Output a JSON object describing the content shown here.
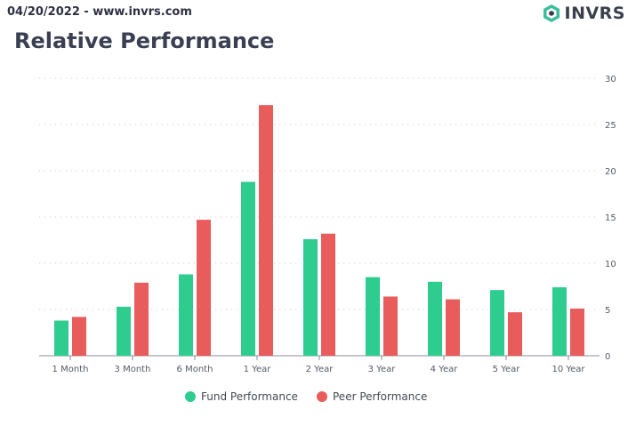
{
  "header": {
    "date_site": "04/20/2022 - www.invrs.com",
    "logo_text": "INVRS",
    "title": "Relative Performance"
  },
  "colors": {
    "fund": "#2ecc8f",
    "peer": "#e85c5c",
    "logo_accent": "#3bbf9b"
  },
  "icons": [
    "logo-hexagon-icon"
  ],
  "chart_data": {
    "type": "bar",
    "categories": [
      "1 Month",
      "3 Month",
      "6 Month",
      "1 Year",
      "2 Year",
      "3 Year",
      "4 Year",
      "5 Year",
      "10 Year"
    ],
    "series": [
      {
        "name": "Fund Performance",
        "values": [
          3.8,
          5.3,
          8.8,
          18.8,
          12.6,
          8.5,
          8.0,
          7.1,
          7.4
        ]
      },
      {
        "name": "Peer Performance",
        "values": [
          4.2,
          7.9,
          14.7,
          27.1,
          13.2,
          6.4,
          6.1,
          4.7,
          5.1
        ]
      }
    ],
    "yticks": [
      "0",
      "5",
      "10",
      "15",
      "20",
      "25",
      "30"
    ],
    "ylim": [
      0,
      30
    ],
    "y_axis_side": "right",
    "grid": true,
    "legend": "bottom-center"
  }
}
